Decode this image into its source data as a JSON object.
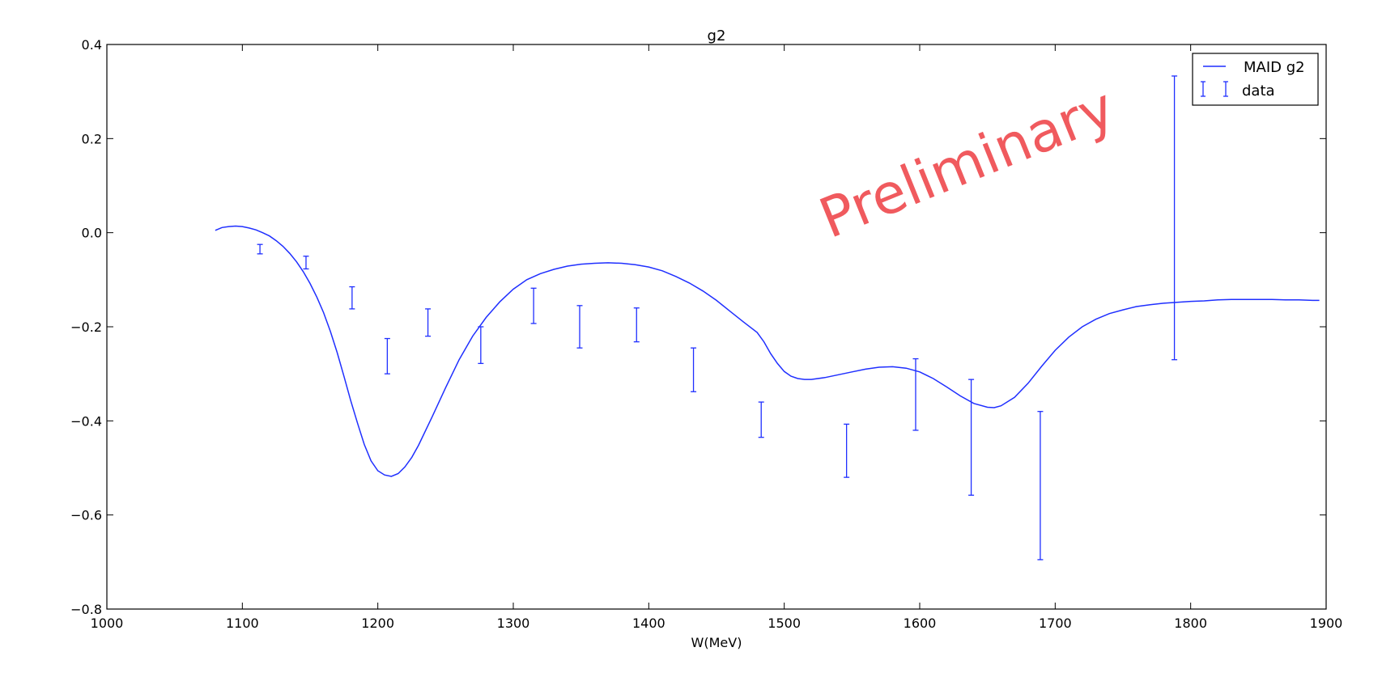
{
  "chart_data": {
    "type": "line",
    "title": "g2",
    "xlabel": "W(MeV)",
    "ylabel": "",
    "xlim": [
      1000,
      1900
    ],
    "ylim": [
      -0.8,
      0.4
    ],
    "grid": false,
    "legend_placement": "top-right",
    "x_ticks": [
      "1000",
      "1100",
      "1200",
      "1300",
      "1400",
      "1500",
      "1600",
      "1700",
      "1800",
      "1900"
    ],
    "y_ticks": [
      "0.4",
      "0.2",
      "0.0",
      "−0.2",
      "−0.4",
      "−0.6",
      "−0.8"
    ],
    "watermark": "Preliminary",
    "colors": {
      "series": "#1f2fff",
      "watermark": "#f05a5e",
      "axes": "#000000"
    },
    "series": [
      {
        "name": "MAID g2",
        "kind": "line",
        "points": [
          [
            1080,
            0.005
          ],
          [
            1085,
            0.011
          ],
          [
            1090,
            0.013
          ],
          [
            1095,
            0.014
          ],
          [
            1100,
            0.013
          ],
          [
            1105,
            0.01
          ],
          [
            1110,
            0.006
          ],
          [
            1115,
            0.0
          ],
          [
            1120,
            -0.007
          ],
          [
            1125,
            -0.017
          ],
          [
            1130,
            -0.029
          ],
          [
            1135,
            -0.044
          ],
          [
            1140,
            -0.062
          ],
          [
            1145,
            -0.083
          ],
          [
            1150,
            -0.108
          ],
          [
            1155,
            -0.137
          ],
          [
            1160,
            -0.17
          ],
          [
            1165,
            -0.21
          ],
          [
            1170,
            -0.255
          ],
          [
            1175,
            -0.305
          ],
          [
            1180,
            -0.357
          ],
          [
            1185,
            -0.405
          ],
          [
            1190,
            -0.45
          ],
          [
            1195,
            -0.485
          ],
          [
            1200,
            -0.506
          ],
          [
            1205,
            -0.515
          ],
          [
            1210,
            -0.518
          ],
          [
            1215,
            -0.512
          ],
          [
            1220,
            -0.498
          ],
          [
            1225,
            -0.478
          ],
          [
            1230,
            -0.452
          ],
          [
            1240,
            -0.392
          ],
          [
            1250,
            -0.33
          ],
          [
            1260,
            -0.27
          ],
          [
            1270,
            -0.22
          ],
          [
            1280,
            -0.18
          ],
          [
            1290,
            -0.147
          ],
          [
            1300,
            -0.12
          ],
          [
            1310,
            -0.1
          ],
          [
            1320,
            -0.087
          ],
          [
            1330,
            -0.078
          ],
          [
            1340,
            -0.071
          ],
          [
            1350,
            -0.067
          ],
          [
            1360,
            -0.065
          ],
          [
            1370,
            -0.064
          ],
          [
            1380,
            -0.065
          ],
          [
            1390,
            -0.068
          ],
          [
            1400,
            -0.073
          ],
          [
            1410,
            -0.081
          ],
          [
            1420,
            -0.093
          ],
          [
            1430,
            -0.107
          ],
          [
            1440,
            -0.124
          ],
          [
            1450,
            -0.144
          ],
          [
            1460,
            -0.167
          ],
          [
            1470,
            -0.19
          ],
          [
            1480,
            -0.212
          ],
          [
            1485,
            -0.232
          ],
          [
            1490,
            -0.257
          ],
          [
            1495,
            -0.278
          ],
          [
            1500,
            -0.295
          ],
          [
            1505,
            -0.305
          ],
          [
            1510,
            -0.31
          ],
          [
            1515,
            -0.312
          ],
          [
            1520,
            -0.312
          ],
          [
            1530,
            -0.308
          ],
          [
            1540,
            -0.302
          ],
          [
            1550,
            -0.296
          ],
          [
            1560,
            -0.29
          ],
          [
            1570,
            -0.286
          ],
          [
            1580,
            -0.285
          ],
          [
            1590,
            -0.288
          ],
          [
            1600,
            -0.296
          ],
          [
            1610,
            -0.31
          ],
          [
            1620,
            -0.328
          ],
          [
            1630,
            -0.347
          ],
          [
            1640,
            -0.363
          ],
          [
            1650,
            -0.371
          ],
          [
            1655,
            -0.372
          ],
          [
            1660,
            -0.368
          ],
          [
            1670,
            -0.35
          ],
          [
            1680,
            -0.32
          ],
          [
            1690,
            -0.284
          ],
          [
            1700,
            -0.25
          ],
          [
            1710,
            -0.222
          ],
          [
            1720,
            -0.2
          ],
          [
            1730,
            -0.184
          ],
          [
            1740,
            -0.172
          ],
          [
            1750,
            -0.164
          ],
          [
            1760,
            -0.157
          ],
          [
            1770,
            -0.153
          ],
          [
            1780,
            -0.15
          ],
          [
            1790,
            -0.148
          ],
          [
            1800,
            -0.146
          ],
          [
            1810,
            -0.145
          ],
          [
            1820,
            -0.143
          ],
          [
            1830,
            -0.142
          ],
          [
            1840,
            -0.142
          ],
          [
            1850,
            -0.142
          ],
          [
            1860,
            -0.142
          ],
          [
            1870,
            -0.143
          ],
          [
            1880,
            -0.143
          ],
          [
            1890,
            -0.144
          ],
          [
            1895,
            -0.144
          ]
        ]
      },
      {
        "name": "data",
        "kind": "errorbar",
        "points": [
          {
            "x": 1113,
            "low": -0.045,
            "high": -0.025
          },
          {
            "x": 1147,
            "low": -0.077,
            "high": -0.05
          },
          {
            "x": 1181,
            "low": -0.162,
            "high": -0.115
          },
          {
            "x": 1207,
            "low": -0.3,
            "high": -0.225
          },
          {
            "x": 1237,
            "low": -0.22,
            "high": -0.162
          },
          {
            "x": 1276,
            "low": -0.278,
            "high": -0.2
          },
          {
            "x": 1315,
            "low": -0.193,
            "high": -0.118
          },
          {
            "x": 1349,
            "low": -0.245,
            "high": -0.155
          },
          {
            "x": 1391,
            "low": -0.232,
            "high": -0.16
          },
          {
            "x": 1433,
            "low": -0.338,
            "high": -0.245
          },
          {
            "x": 1483,
            "low": -0.435,
            "high": -0.36
          },
          {
            "x": 1546,
            "low": -0.52,
            "high": -0.407
          },
          {
            "x": 1597,
            "low": -0.42,
            "high": -0.268
          },
          {
            "x": 1638,
            "low": -0.558,
            "high": -0.312
          },
          {
            "x": 1689,
            "low": -0.695,
            "high": -0.38
          },
          {
            "x": 1788,
            "low": -0.27,
            "high": 0.333
          }
        ]
      }
    ]
  }
}
